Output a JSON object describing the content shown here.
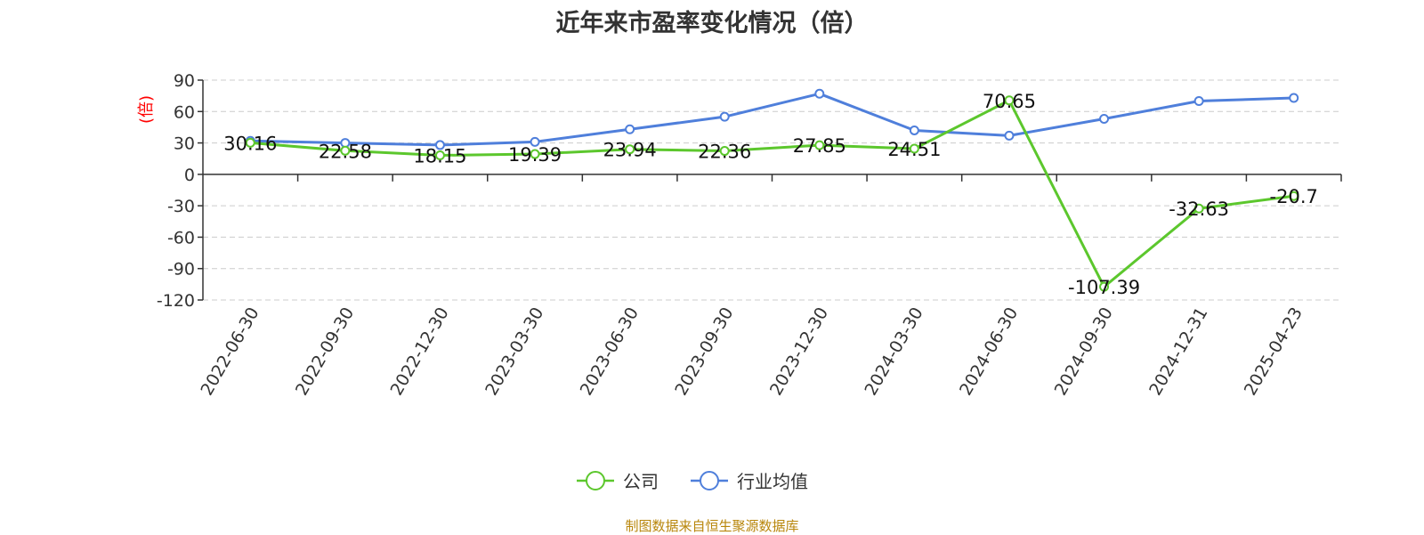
{
  "title": "近年来市盈率变化情况（倍）",
  "source": "制图数据来自恒生聚源数据库",
  "chart_data": {
    "type": "line",
    "title": "近年来市盈率变化情况（倍）",
    "xlabel": "",
    "ylabel": "(倍)",
    "ylim": [
      -120,
      90
    ],
    "yticks": [
      90,
      60,
      30,
      0,
      -30,
      -60,
      -90,
      -120
    ],
    "grid": true,
    "legend_position": "bottom",
    "categories": [
      "2022-06-30",
      "2022-09-30",
      "2022-12-30",
      "2023-03-30",
      "2023-06-30",
      "2023-09-30",
      "2023-12-30",
      "2024-03-30",
      "2024-06-30",
      "2024-09-30",
      "2024-12-31",
      "2025-04-23"
    ],
    "series": [
      {
        "name": "公司",
        "color": "#5cc72d",
        "values": [
          30.16,
          22.58,
          18.15,
          19.39,
          23.94,
          22.36,
          27.85,
          24.51,
          70.65,
          -107.39,
          -32.63,
          -20.7
        ],
        "labels": [
          "30.16",
          "22.58",
          "18.15",
          "19.39",
          "23.94",
          "22.36",
          "27.85",
          "24.51",
          "70.65",
          "-107.39",
          "-32.63",
          "-20.7"
        ]
      },
      {
        "name": "行业均值",
        "color": "#4f7fdb",
        "values": [
          32,
          30,
          28,
          31,
          43,
          55,
          77,
          42,
          37,
          53,
          70,
          73
        ]
      }
    ]
  }
}
